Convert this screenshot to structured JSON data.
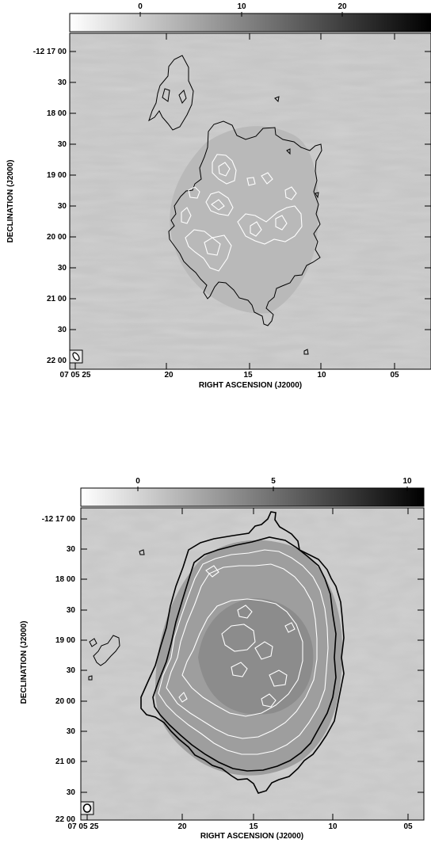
{
  "panels": [
    {
      "colorbar": {
        "ticks": [
          "0",
          "10",
          "20"
        ],
        "tick_values": [
          0,
          10,
          20
        ],
        "range": [
          -5.5,
          26.5
        ]
      },
      "y_axis_label": "DECLINATION (J2000)",
      "x_axis_label": "RIGHT ASCENSION (J2000)",
      "dec_ticks": [
        "-12 17 00",
        "30",
        "18 00",
        "30",
        "19 00",
        "30",
        "20 00",
        "30",
        "21 00",
        "30",
        "22 00"
      ],
      "ra_ticks": [
        "07 05 25",
        "20",
        "15",
        "10",
        "05"
      ]
    },
    {
      "colorbar": {
        "ticks": [
          "0",
          "5",
          "10"
        ],
        "tick_values": [
          0,
          5,
          10
        ],
        "range": [
          -2.2,
          10.8
        ]
      },
      "y_axis_label": "DECLINATION (J2000)",
      "x_axis_label": "RIGHT ASCENSION (J2000)",
      "dec_ticks": [
        "-12 17 00",
        "30",
        "18 00",
        "30",
        "19 00",
        "30",
        "20 00",
        "30",
        "21 00",
        "30",
        "22 00"
      ],
      "ra_ticks": [
        "07 05 25",
        "20",
        "15",
        "10",
        "05"
      ]
    }
  ],
  "colors": {
    "background_gray": "#c4c4c4",
    "frame": "#000000",
    "contour_dark": "#000000",
    "contour_light": "#ffffff"
  }
}
